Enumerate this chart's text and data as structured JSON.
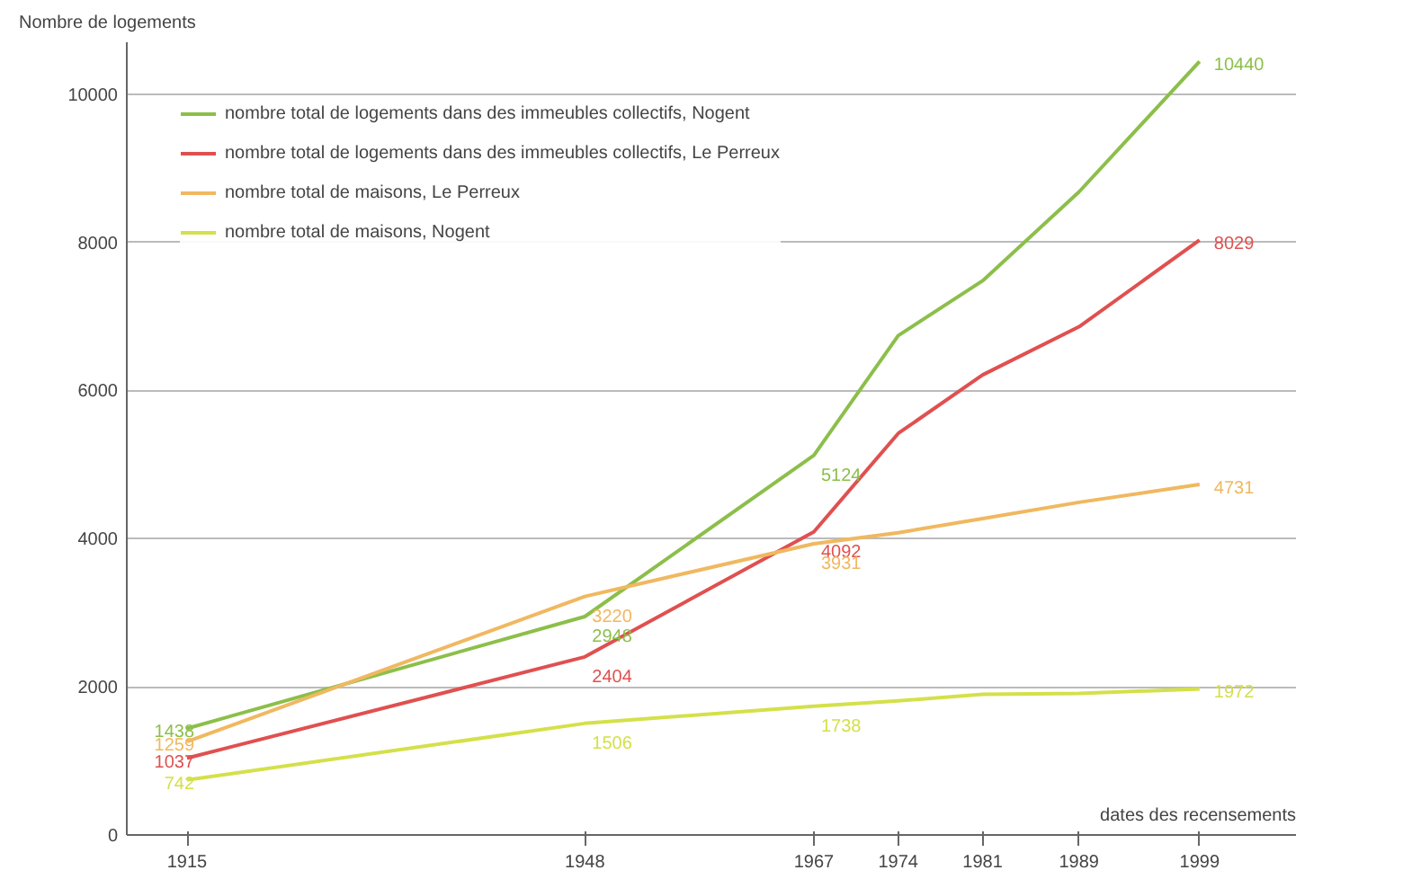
{
  "chart_data": {
    "type": "line",
    "xlabel": "dates des recensements",
    "ylabel": "Nombre de logements",
    "x": [
      1915,
      1948,
      1967,
      1974,
      1981,
      1989,
      1999
    ],
    "series": [
      {
        "name": "nombre total de logements dans des immeubles collectifs, Nogent",
        "color": "#8cbf4a",
        "values": [
          1438,
          2948,
          5124,
          6740,
          7480,
          8680,
          10440
        ],
        "value_labels": [
          "1438",
          "2948",
          "5124",
          null,
          null,
          null,
          "10440"
        ]
      },
      {
        "name": "nombre total de logements dans des immeubles collectifs, Le Perreux",
        "color": "#e05050",
        "values": [
          1037,
          2404,
          4092,
          5420,
          6210,
          6860,
          8029
        ],
        "value_labels": [
          "1037",
          "2404",
          "4092",
          null,
          null,
          null,
          "8029"
        ]
      },
      {
        "name": "nombre total de maisons, Le Perreux",
        "color": "#f0b860",
        "values": [
          1259,
          3220,
          3931,
          4080,
          4270,
          4490,
          4731
        ],
        "value_labels": [
          "1259",
          "3220",
          "3931",
          null,
          null,
          null,
          "4731"
        ]
      },
      {
        "name": "nombre total de maisons, Nogent",
        "color": "#d4e04a",
        "values": [
          742,
          1506,
          1738,
          1810,
          1900,
          1910,
          1972
        ],
        "value_labels": [
          "742",
          "1506",
          "1738",
          null,
          null,
          null,
          "1972"
        ]
      }
    ],
    "xlim": [
      1910,
      2007
    ],
    "xticks": [
      1915,
      1948,
      1967,
      1974,
      1981,
      1989,
      1999
    ],
    "ylim": [
      0,
      10700
    ],
    "yticks": [
      0,
      2000,
      4000,
      6000,
      8000,
      10000
    ],
    "grid": "y",
    "legend": "top left",
    "marker": "none",
    "line_style": "solid"
  }
}
